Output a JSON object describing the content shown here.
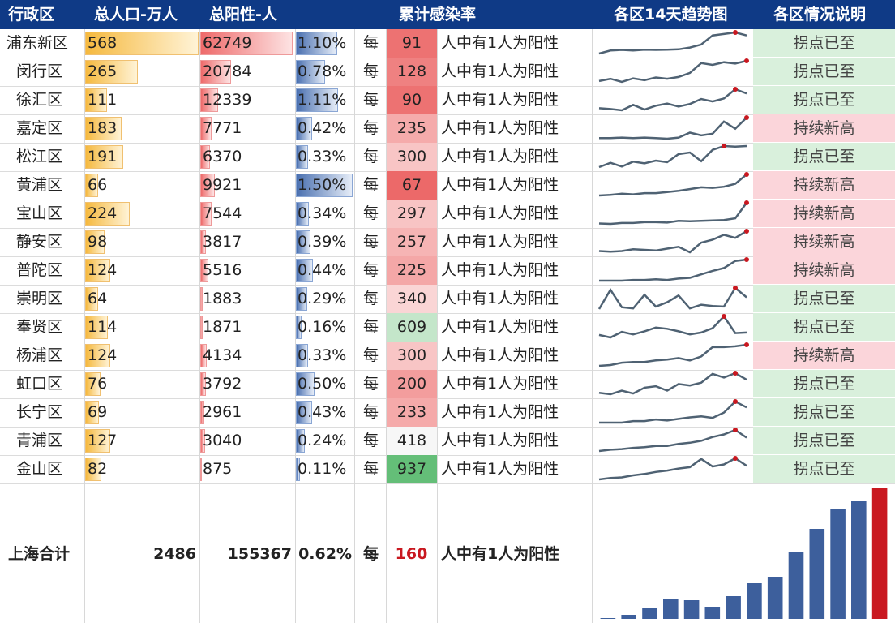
{
  "headers": {
    "district": "行政区",
    "population": "总人口-万人",
    "positive": "总阳性-人",
    "rate": "累计感染率",
    "trend": "各区14天趋势图",
    "status": "各区情况说明"
  },
  "labels": {
    "every": "每",
    "phrase": "人中有1人为阳性"
  },
  "colors": {
    "header_bg": "#0f3a86",
    "pop_bar": "#f5b93f",
    "pos_bar": "#ee6a6a",
    "rate_bar": "#4a70b0",
    "inflection_bg": "#d9f0dc",
    "new_high_bg": "#fbd5da",
    "sparkline": "#4f6273",
    "last_bar": "#c91820",
    "bars": "#3d5f9c"
  },
  "total": {
    "label": "上海合计",
    "population": "2486",
    "positive": "155367",
    "rate": "0.62%",
    "every": "每",
    "n": "160",
    "phrase": "人中有1人为阳性"
  },
  "chart_data": [
    {
      "type": "table",
      "columns": [
        "行政区",
        "总人口-万人",
        "总阳性-人",
        "累计感染率",
        "各区情况说明"
      ],
      "rows": [
        {
          "district": "浦东新区",
          "population": 568,
          "positive": 62749,
          "rate": "1.10%",
          "n": 91,
          "status": "拐点已至",
          "trend": [
            2,
            3,
            3.2,
            3,
            3.3,
            3.2,
            3.3,
            3.4,
            4,
            5,
            8,
            8.5,
            9,
            8
          ]
        },
        {
          "district": "闵行区",
          "population": 265,
          "positive": 20784,
          "rate": "0.78%",
          "n": 128,
          "status": "拐点已至",
          "trend": [
            4,
            4.5,
            3.8,
            4.6,
            4.2,
            4.8,
            4.5,
            4.9,
            5.8,
            8,
            7.6,
            8.2,
            7.9,
            8.5
          ]
        },
        {
          "district": "徐汇区",
          "population": 111,
          "positive": 12339,
          "rate": "1.11%",
          "n": 90,
          "status": "拐点已至",
          "trend": [
            3,
            2.8,
            2.5,
            3.8,
            2.7,
            3.6,
            4.1,
            3.4,
            4,
            5.2,
            4.6,
            5.3,
            7.5,
            6.5
          ]
        },
        {
          "district": "嘉定区",
          "population": 183,
          "positive": 7771,
          "rate": "0.42%",
          "n": 235,
          "status": "持续新高",
          "trend": [
            1.5,
            1.5,
            1.6,
            1.5,
            1.6,
            1.5,
            1.4,
            1.6,
            2.5,
            2,
            2.3,
            4.5,
            3.2,
            5.2
          ]
        },
        {
          "district": "松江区",
          "population": 191,
          "positive": 6370,
          "rate": "0.33%",
          "n": 300,
          "status": "拐点已至",
          "trend": [
            1.6,
            2.4,
            1.7,
            2.6,
            2.3,
            2.8,
            2.5,
            4,
            4.3,
            2.7,
            4.8,
            5.5,
            5.4,
            5.5
          ]
        },
        {
          "district": "黄浦区",
          "population": 66,
          "positive": 9921,
          "rate": "1.50%",
          "n": 67,
          "status": "持续新高",
          "trend": [
            1.6,
            1.7,
            1.9,
            1.8,
            2,
            2,
            2.2,
            2.4,
            2.7,
            3,
            2.9,
            3.1,
            3.6,
            5.2
          ]
        },
        {
          "district": "宝山区",
          "population": 224,
          "positive": 7544,
          "rate": "0.34%",
          "n": 297,
          "status": "持续新高",
          "trend": [
            1.2,
            1.1,
            1.3,
            1.3,
            1.5,
            1.5,
            1.4,
            1.8,
            1.7,
            1.8,
            1.9,
            2,
            2.4,
            6
          ]
        },
        {
          "district": "静安区",
          "population": 98,
          "positive": 3817,
          "rate": "0.39%",
          "n": 257,
          "status": "持续新高",
          "trend": [
            1.5,
            1.4,
            1.5,
            1.8,
            1.7,
            1.6,
            1.9,
            2.2,
            1.3,
            2.9,
            3.4,
            4.2,
            3.7,
            4.8
          ]
        },
        {
          "district": "普陀区",
          "population": 124,
          "positive": 5516,
          "rate": "0.44%",
          "n": 225,
          "status": "持续新高",
          "trend": [
            1.4,
            1.4,
            1.4,
            1.5,
            1.5,
            1.6,
            1.5,
            1.7,
            1.8,
            2.3,
            2.8,
            3.2,
            4.2,
            4.4
          ]
        },
        {
          "district": "崇明区",
          "population": 64,
          "positive": 1883,
          "rate": "0.29%",
          "n": 340,
          "status": "拐点已至",
          "trend": [
            1.2,
            4.3,
            1.5,
            1.3,
            3.5,
            1.6,
            2.3,
            3.4,
            1.3,
            1.9,
            1.7,
            1.6,
            4.6,
            3.1
          ]
        },
        {
          "district": "奉贤区",
          "population": 114,
          "positive": 1871,
          "rate": "0.16%",
          "n": 609,
          "status": "拐点已至",
          "trend": [
            1.5,
            1.1,
            2,
            1.6,
            2.1,
            2.7,
            2.5,
            2.1,
            1.6,
            1.9,
            2.6,
            4.5,
            1.8,
            1.9
          ]
        },
        {
          "district": "杨浦区",
          "population": 124,
          "positive": 4134,
          "rate": "0.33%",
          "n": 300,
          "status": "持续新高",
          "trend": [
            1.2,
            1.3,
            1.6,
            1.7,
            1.7,
            1.9,
            2,
            2.2,
            1.9,
            2.4,
            3.6,
            3.6,
            3.7,
            3.9
          ]
        },
        {
          "district": "虹口区",
          "population": 76,
          "positive": 3792,
          "rate": "0.50%",
          "n": 200,
          "status": "拐点已至",
          "trend": [
            1.5,
            1.3,
            1.8,
            1.4,
            2.2,
            2.4,
            1.8,
            2.7,
            2.5,
            2.9,
            4.1,
            3.6,
            4.2,
            3.3
          ]
        },
        {
          "district": "长宁区",
          "population": 69,
          "positive": 2961,
          "rate": "0.43%",
          "n": 233,
          "status": "拐点已至",
          "trend": [
            1.2,
            1.2,
            1.2,
            1.5,
            1.5,
            1.8,
            1.6,
            1.9,
            2.2,
            2.4,
            2.1,
            3.1,
            5.2,
            4.1
          ]
        },
        {
          "district": "青浦区",
          "population": 127,
          "positive": 3040,
          "rate": "0.24%",
          "n": 418,
          "status": "拐点已至",
          "trend": [
            1.2,
            1.4,
            1.5,
            1.7,
            1.8,
            2,
            2,
            2.3,
            2.5,
            2.8,
            3.4,
            3.8,
            4.5,
            3.3
          ]
        },
        {
          "district": "金山区",
          "population": 82,
          "positive": 875,
          "rate": "0.11%",
          "n": 937,
          "status": "拐点已至",
          "trend": [
            1,
            1.2,
            1.3,
            1.6,
            1.8,
            2.1,
            2.3,
            2.6,
            2.8,
            4,
            2.9,
            3.2,
            4.1,
            3
          ]
        }
      ]
    },
    {
      "type": "bar",
      "values": [
        1,
        5,
        14,
        24,
        23,
        15,
        28,
        44,
        52,
        82,
        111,
        135,
        145,
        162
      ]
    }
  ]
}
